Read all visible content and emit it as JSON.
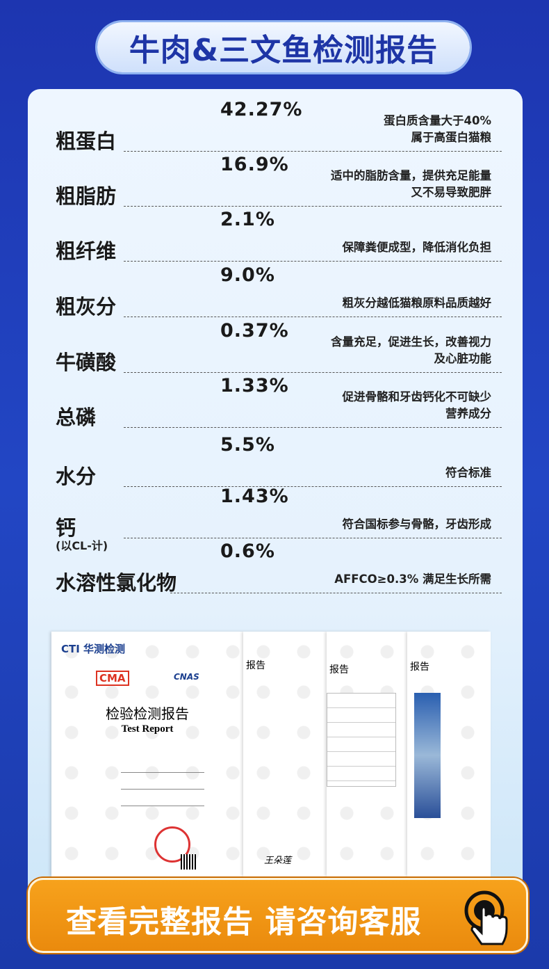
{
  "title": "牛肉&三文鱼检测报告",
  "rows": [
    {
      "label": "粗蛋白",
      "value": "42.27%",
      "desc": [
        "蛋白质含量大于40%",
        "属于高蛋白猫粮"
      ]
    },
    {
      "label": "粗脂肪",
      "value": "16.9%",
      "desc": [
        "适中的脂肪含量，提供充足能量",
        "又不易导致肥胖"
      ]
    },
    {
      "label": "粗纤维",
      "value": "2.1%",
      "desc": [
        "保障粪便成型，降低消化负担"
      ]
    },
    {
      "label": "粗灰分",
      "value": "9.0%",
      "desc": [
        "粗灰分越低猫粮原料品质越好"
      ]
    },
    {
      "label": "牛磺酸",
      "value": "0.37%",
      "desc": [
        "含量充足，促进生长，改善视力",
        "及心脏功能"
      ]
    },
    {
      "label": "总磷",
      "value": "1.33%",
      "desc": [
        "促进骨骼和牙齿钙化不可缺少",
        "营养成分"
      ]
    },
    {
      "label": "水分",
      "value": "5.5%",
      "desc": [
        "符合标准"
      ]
    },
    {
      "label": "钙",
      "value": "1.43%",
      "desc": [
        "符合国标参与骨骼，牙齿形成"
      ]
    },
    {
      "label": "水溶性氯化物",
      "sublabel": "(以CL-计)",
      "value": "0.6%",
      "desc": [
        "AFFCO≥0.3% 满足生长所需"
      ]
    }
  ],
  "report": {
    "brand": "CTI 华测检测",
    "title_cn": "检验检测报告",
    "title_en": "Test Report",
    "cma": "CMA",
    "cnas": "CNAS",
    "page_heading": "报告",
    "signature": "王朵莲"
  },
  "cta": {
    "label": "查看完整报告 请咨询客服",
    "icon": "tap-finger-icon"
  }
}
